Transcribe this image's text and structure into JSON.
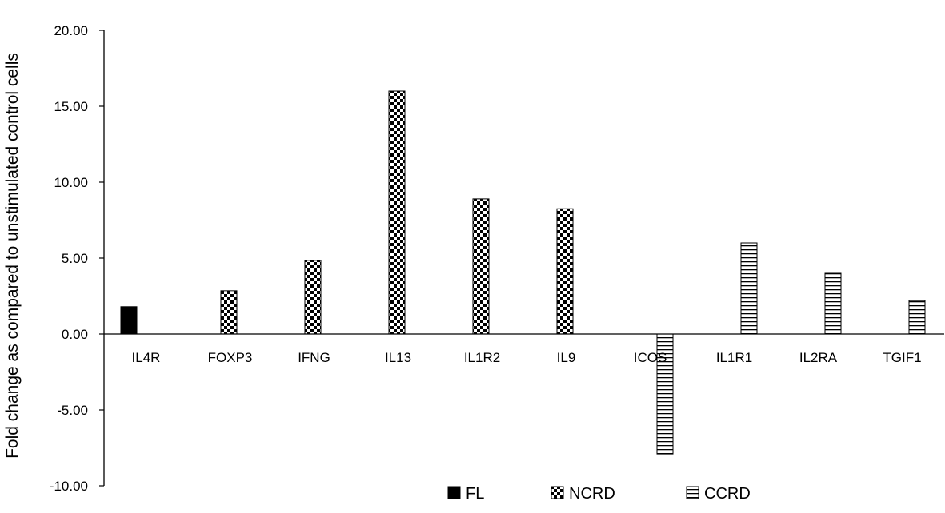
{
  "chart_data": {
    "type": "bar",
    "title": "",
    "xlabel": "",
    "ylabel": "Fold change as compared to unstimulated control cells",
    "ylim": [
      -10,
      20
    ],
    "yticks": [
      "-10.00",
      "-5.00",
      "0.00",
      "5.00",
      "10.00",
      "15.00",
      "20.00"
    ],
    "categories": [
      "IL4R",
      "FOXP3",
      "IFNG",
      "IL13",
      "IL1R2",
      "IL9",
      "ICOS",
      "IL1R1",
      "IL2RA",
      "TGIF1"
    ],
    "series": [
      {
        "name": "FL",
        "pattern": "solid",
        "values": [
          1.8,
          null,
          null,
          null,
          null,
          null,
          null,
          null,
          null,
          null
        ]
      },
      {
        "name": "NCRD",
        "pattern": "checkerboard",
        "values": [
          null,
          2.85,
          4.85,
          16.0,
          8.9,
          8.25,
          null,
          null,
          null,
          null
        ]
      },
      {
        "name": "CCRD",
        "pattern": "horizontal-lines",
        "values": [
          null,
          null,
          null,
          null,
          null,
          null,
          -7.9,
          6.0,
          4.0,
          2.2
        ]
      }
    ],
    "grid": false,
    "legend_position": "bottom-right",
    "colors": {
      "bar_fill": "#000000",
      "axis": "#000000",
      "background": "#ffffff"
    }
  }
}
